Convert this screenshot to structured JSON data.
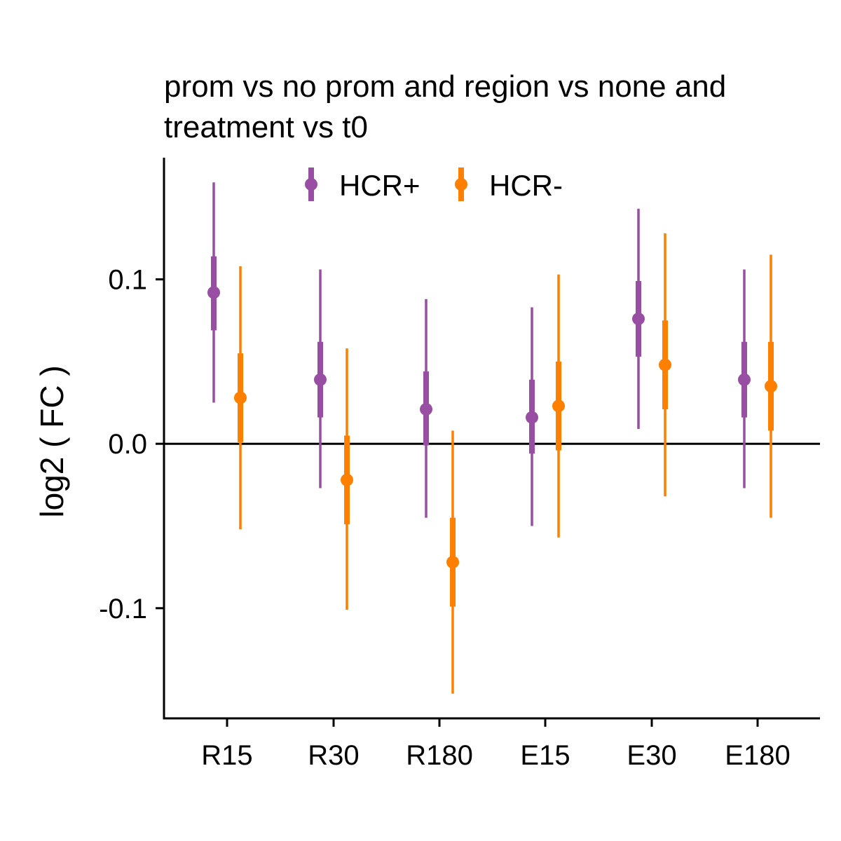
{
  "chart_data": {
    "type": "scatter",
    "subtype": "pointrange",
    "title": [
      "prom vs no prom and region vs none and",
      "treatment vs t0"
    ],
    "ylabel": "log2 ( FC )",
    "xlabel": "",
    "categories": [
      "R15",
      "R30",
      "R180",
      "E15",
      "E30",
      "E180"
    ],
    "ylim": [
      -0.167,
      0.174
    ],
    "yticks": [
      -0.1,
      0.0,
      0.1
    ],
    "ytick_labels": [
      "-0.1",
      "0.0",
      "0.1"
    ],
    "hline": 0.0,
    "grid": false,
    "legend_position": "top",
    "series": [
      {
        "name": "HCR+",
        "color": "#984EA3",
        "points": [
          {
            "category": "R15",
            "y": 0.092,
            "inner": [
              0.069,
              0.114
            ],
            "outer": [
              0.025,
              0.159
            ]
          },
          {
            "category": "R30",
            "y": 0.039,
            "inner": [
              0.016,
              0.062
            ],
            "outer": [
              -0.027,
              0.106
            ]
          },
          {
            "category": "R180",
            "y": 0.021,
            "inner": [
              -0.001,
              0.044
            ],
            "outer": [
              -0.045,
              0.088
            ]
          },
          {
            "category": "E15",
            "y": 0.016,
            "inner": [
              -0.006,
              0.039
            ],
            "outer": [
              -0.05,
              0.083
            ]
          },
          {
            "category": "E30",
            "y": 0.076,
            "inner": [
              0.053,
              0.099
            ],
            "outer": [
              0.009,
              0.143
            ]
          },
          {
            "category": "E180",
            "y": 0.039,
            "inner": [
              0.016,
              0.062
            ],
            "outer": [
              -0.027,
              0.106
            ]
          }
        ]
      },
      {
        "name": "HCR-",
        "color": "#FF7F00",
        "points": [
          {
            "category": "R15",
            "y": 0.028,
            "inner": [
              0.001,
              0.055
            ],
            "outer": [
              -0.052,
              0.108
            ]
          },
          {
            "category": "R30",
            "y": -0.022,
            "inner": [
              -0.049,
              0.005
            ],
            "outer": [
              -0.101,
              0.058
            ]
          },
          {
            "category": "R180",
            "y": -0.072,
            "inner": [
              -0.099,
              -0.045
            ],
            "outer": [
              -0.152,
              0.008
            ]
          },
          {
            "category": "E15",
            "y": 0.023,
            "inner": [
              -0.004,
              0.05
            ],
            "outer": [
              -0.057,
              0.103
            ]
          },
          {
            "category": "E30",
            "y": 0.048,
            "inner": [
              0.021,
              0.075
            ],
            "outer": [
              -0.032,
              0.128
            ]
          },
          {
            "category": "E180",
            "y": 0.035,
            "inner": [
              0.008,
              0.062
            ],
            "outer": [
              -0.045,
              0.115
            ]
          }
        ]
      }
    ]
  }
}
